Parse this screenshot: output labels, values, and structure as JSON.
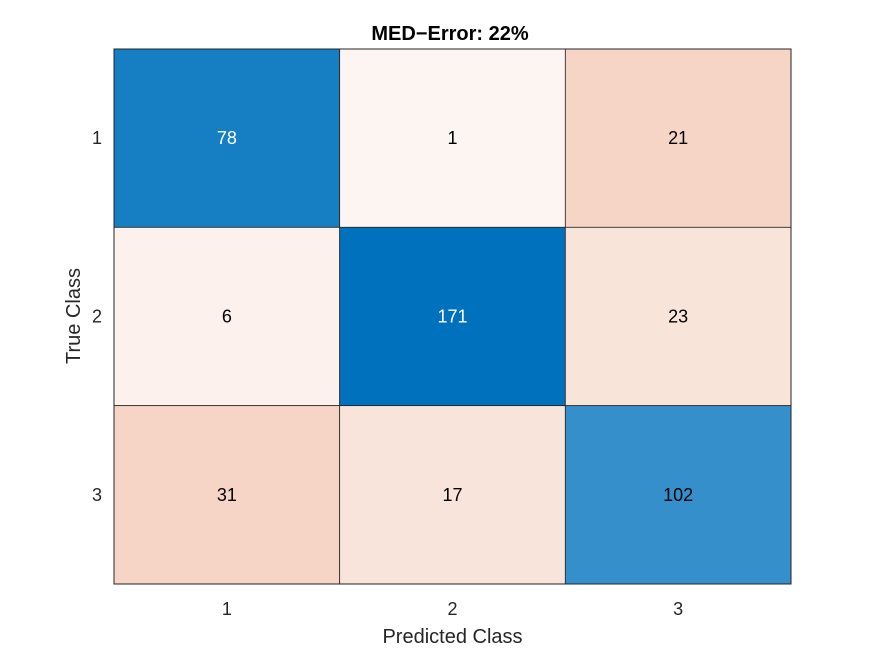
{
  "chart_data": {
    "type": "heatmap",
    "title": "MED−Error:  22%",
    "xlabel": "Predicted Class",
    "ylabel": "True Class",
    "x_categories": [
      "1",
      "2",
      "3"
    ],
    "y_categories": [
      "1",
      "2",
      "3"
    ],
    "matrix": [
      [
        78,
        1,
        21
      ],
      [
        6,
        171,
        23
      ],
      [
        31,
        17,
        102
      ]
    ],
    "colors": {
      "diagonal_full": "#0072BD",
      "offdiagonal_full": "#D95319",
      "light_text": "#ffffff",
      "dark_text": "#000000",
      "grid_line": "#262626"
    }
  }
}
